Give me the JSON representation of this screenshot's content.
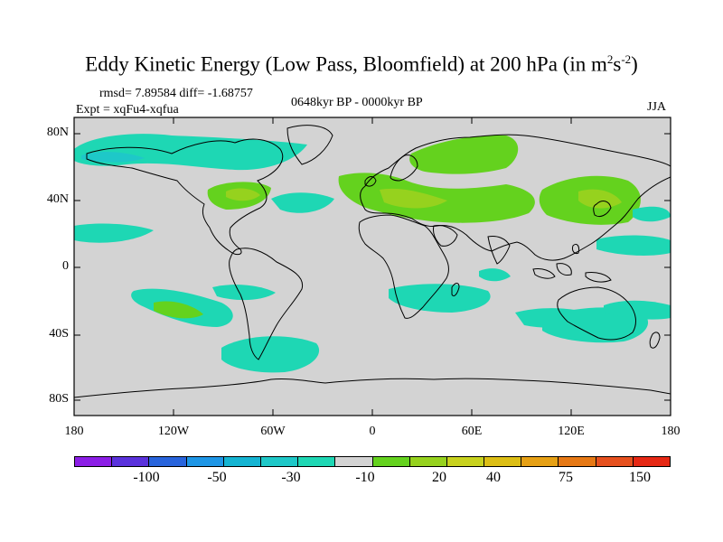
{
  "title": {
    "main": "Eddy Kinetic Energy (Low Pass, Bloomfield) at 200 hPa (in m",
    "sup1": "2",
    "mid": "s",
    "sup2": "-2",
    "end": ")"
  },
  "stats": "rmsd= 7.89584 diff= -1.68757",
  "experiment": "Expt = xqFu4-xqfua",
  "period": "0648kyr BP - 0000kyr BP",
  "season": "JJA",
  "map": {
    "background_color": "#d3d3d3",
    "lat_labels": [
      "80N",
      "40N",
      "0",
      "40S",
      "80S"
    ],
    "lon_labels": [
      "180",
      "120W",
      "60W",
      "0",
      "60E",
      "120E",
      "180"
    ]
  },
  "colorbar": {
    "colors": [
      "#8c1ee6",
      "#5a32dc",
      "#2864dc",
      "#1e96e6",
      "#14b4d2",
      "#1ec8c8",
      "#1ed7b4",
      "#d3d3d3",
      "#64d21e",
      "#96d21e",
      "#c8d21e",
      "#dcbe14",
      "#e6a014",
      "#e67814",
      "#e6501e",
      "#e62814"
    ],
    "labels": [
      "-100",
      "-50",
      "-30",
      "-10",
      "20",
      "40",
      "75",
      "150"
    ]
  },
  "anomaly_regions": [
    {
      "name": "north-pacific",
      "level": "-10"
    },
    {
      "name": "north-atlantic",
      "level": "-10"
    },
    {
      "name": "eastern-north-america",
      "level": "20"
    },
    {
      "name": "europe-middle-east",
      "level": "20"
    },
    {
      "name": "scandinavia-russia",
      "level": "20"
    },
    {
      "name": "east-asia",
      "level": "20"
    },
    {
      "name": "tropical-pacific",
      "level": "-10"
    },
    {
      "name": "south-pacific",
      "level": "20"
    },
    {
      "name": "south-atlantic",
      "level": "-10"
    },
    {
      "name": "indian-ocean",
      "level": "-10"
    },
    {
      "name": "australia-south",
      "level": "-10"
    }
  ]
}
